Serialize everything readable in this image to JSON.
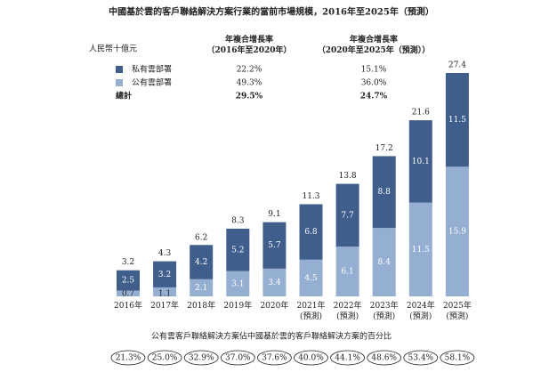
{
  "chart_data": {
    "type": "bar",
    "stacked": true,
    "title": "中國基於雲的客戶聯絡解決方案行業的當前市場規模，2016年至2025年（預測）",
    "unit_label": "人民幣十億元",
    "categories": [
      "2016年",
      "2017年",
      "2018年",
      "2019年",
      "2020年",
      "2021年\n(預測)",
      "2022年\n(預測)",
      "2023年\n(預測)",
      "2024年\n(預測)",
      "2025年\n(預測)"
    ],
    "series": [
      {
        "name": "私有雲部署",
        "color": "#3f5e8c",
        "values": [
          2.5,
          3.2,
          4.2,
          5.2,
          5.7,
          6.8,
          7.7,
          8.8,
          10.1,
          11.5
        ]
      },
      {
        "name": "公有雲部署",
        "color": "#95afd3",
        "values": [
          0.7,
          1.1,
          2.1,
          3.1,
          3.4,
          4.5,
          6.1,
          8.4,
          11.5,
          15.9
        ]
      }
    ],
    "totals": [
      3.2,
      4.3,
      6.2,
      8.3,
      9.1,
      11.3,
      13.8,
      17.2,
      21.6,
      27.4
    ],
    "total_label": "總計",
    "cagr_table": {
      "headers": [
        "年複合增長率\n（2016年至2020年）",
        "年複合增長率\n（2020年至2025年（預測））"
      ],
      "rows": [
        [
          "22.2%",
          "15.1%"
        ],
        [
          "49.3%",
          "36.0%"
        ],
        [
          "29.5%",
          "24.7%"
        ]
      ]
    },
    "share_title": "公有雲客戶聯絡解決方案佔中國基於雲的客戶聯絡解決方案的百分比",
    "share_values": [
      "21.3%",
      "25.0%",
      "32.9%",
      "37.0%",
      "37.6%",
      "40.0%",
      "44.1%",
      "48.6%",
      "53.4%",
      "58.1%"
    ]
  }
}
